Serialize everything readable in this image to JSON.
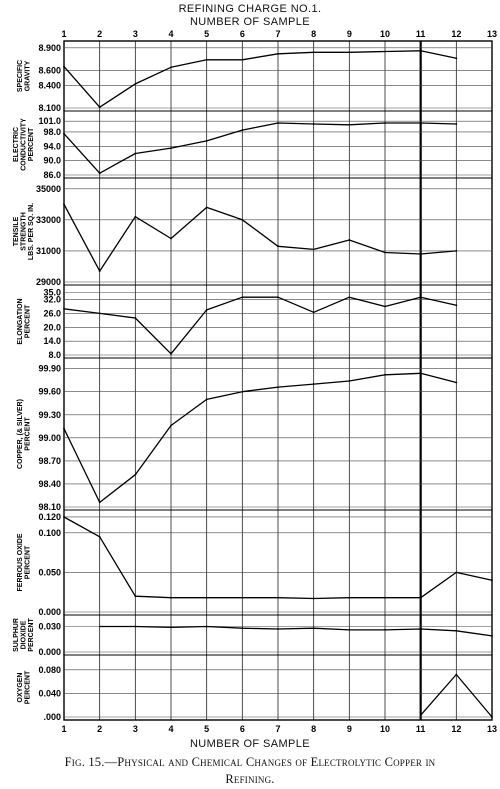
{
  "header": {
    "title": "REFINING CHARGE NO.1.",
    "subtitle": "NUMBER OF SAMPLE"
  },
  "caption": {
    "line1": "Fig. 15.—Physical and Chemical Changes of Electrolytic Copper in",
    "line2": "Refining."
  },
  "x_axis_title": "NUMBER OF SAMPLE",
  "chart_data": {
    "type": "line",
    "x": [
      1,
      2,
      3,
      4,
      5,
      6,
      7,
      8,
      9,
      10,
      11,
      12,
      13
    ],
    "x_tick_labels": [
      "1",
      "2",
      "3",
      "4",
      "5",
      "6",
      "7",
      "8",
      "9",
      "10",
      "11",
      "12",
      "13"
    ],
    "grid": true,
    "highlight_x": 11,
    "panels": [
      {
        "ylabel": [
          "SPECIFIC",
          "GRAVITY"
        ],
        "ticks": [
          8.1,
          8.4,
          8.6,
          8.9
        ],
        "tick_labels": [
          "8.100",
          "8.400",
          "8.600",
          "8.900"
        ],
        "ylim": [
          8.1,
          8.95
        ],
        "x": [
          1,
          2,
          3,
          4,
          5,
          6,
          7,
          8,
          9,
          10,
          11,
          12
        ],
        "values": [
          8.65,
          8.11,
          8.42,
          8.64,
          8.74,
          8.74,
          8.82,
          8.84,
          8.84,
          8.85,
          8.86,
          8.76
        ]
      },
      {
        "ylabel": [
          "ELECTRIC",
          "CONDUCTIVITY",
          "PERCENT"
        ],
        "ticks": [
          86.0,
          90.0,
          94.0,
          98.0,
          101.0
        ],
        "tick_labels": [
          "86.0",
          "90.0",
          "94.0",
          "98.0",
          "101.0"
        ],
        "ylim": [
          86.0,
          103.0
        ],
        "x": [
          1,
          2,
          3,
          4,
          5,
          6,
          7,
          8,
          9,
          10,
          11,
          12
        ],
        "values": [
          97.5,
          86.5,
          92.0,
          93.5,
          95.5,
          98.5,
          100.5,
          100.2,
          100.0,
          100.5,
          100.5,
          100.2
        ]
      },
      {
        "ylabel": [
          "TENSILE",
          "STRENGTH",
          "LBS. PER SQ. IN."
        ],
        "ticks": [
          29000,
          31000,
          33000,
          35000
        ],
        "tick_labels": [
          "29000",
          "31000",
          "33000",
          "35000"
        ],
        "ylim": [
          29000,
          35500
        ],
        "x": [
          1,
          2,
          3,
          4,
          5,
          6,
          7,
          8,
          9,
          10,
          11,
          12
        ],
        "values": [
          34000,
          29700,
          33200,
          31800,
          33800,
          33000,
          31300,
          31100,
          31700,
          30900,
          30800,
          31000
        ]
      },
      {
        "ylabel": [
          "ELONGATION",
          "PERCENT"
        ],
        "ticks": [
          8.0,
          14.0,
          20.0,
          26.0,
          32.0,
          35.0
        ],
        "tick_labels": [
          "8.0",
          "14.0",
          "20.0",
          "26.0",
          "32.0",
          "35.0"
        ],
        "ylim": [
          8.0,
          37.0
        ],
        "x": [
          1,
          2,
          3,
          4,
          5,
          6,
          7,
          8,
          9,
          10,
          11,
          12
        ],
        "values": [
          28.0,
          26.0,
          24.0,
          8.5,
          27.5,
          33.0,
          33.0,
          26.5,
          33.0,
          29.0,
          33.0,
          29.5
        ]
      },
      {
        "ylabel": [
          "COPPER, (& SILVER)",
          "PERCENT"
        ],
        "ticks": [
          98.1,
          98.4,
          98.7,
          99.0,
          99.3,
          99.6,
          99.9
        ],
        "tick_labels": [
          "98.10",
          "98.40",
          "98.70",
          "99.00",
          "99.30",
          "99.60",
          "99.90"
        ],
        "ylim": [
          98.1,
          100.0
        ],
        "x": [
          1,
          2,
          3,
          4,
          5,
          6,
          7,
          8,
          9,
          10,
          11,
          12
        ],
        "values": [
          99.12,
          98.16,
          98.52,
          99.16,
          99.5,
          99.6,
          99.66,
          99.7,
          99.74,
          99.82,
          99.84,
          99.72
        ]
      },
      {
        "ylabel": [
          "FERROUS OXIDE",
          "PERCENT"
        ],
        "ticks": [
          0.0,
          0.05,
          0.1,
          0.12
        ],
        "tick_labels": [
          "0.000",
          "0.050",
          "0.100",
          "0.120"
        ],
        "ylim": [
          0.0,
          0.125
        ],
        "x": [
          1,
          2,
          3,
          4,
          5,
          6,
          7,
          8,
          9,
          10,
          11,
          12,
          13
        ],
        "values": [
          0.12,
          0.095,
          0.02,
          0.018,
          0.018,
          0.018,
          0.018,
          0.017,
          0.018,
          0.018,
          0.018,
          0.05,
          0.04
        ]
      },
      {
        "ylabel": [
          "SULPHUR",
          "DIOXIDE",
          "PERCENT"
        ],
        "ticks": [
          0.0,
          0.03
        ],
        "tick_labels": [
          "0.000",
          "0.030"
        ],
        "ylim": [
          0.0,
          0.04
        ],
        "x": [
          2,
          3,
          4,
          5,
          6,
          7,
          8,
          9,
          10,
          11,
          12,
          13
        ],
        "values": [
          0.03,
          0.03,
          0.029,
          0.03,
          0.028,
          0.027,
          0.028,
          0.026,
          0.026,
          0.027,
          0.025,
          0.019
        ]
      },
      {
        "ylabel": [
          "OXYGEN",
          "PERCENT"
        ],
        "ticks": [
          0.0,
          0.04,
          0.08
        ],
        "tick_labels": [
          ".000",
          "0.040",
          "0.080"
        ],
        "ylim": [
          0.0,
          0.1
        ],
        "x": [
          11,
          12,
          13
        ],
        "values": [
          0.003,
          0.072,
          0.0
        ]
      }
    ]
  }
}
